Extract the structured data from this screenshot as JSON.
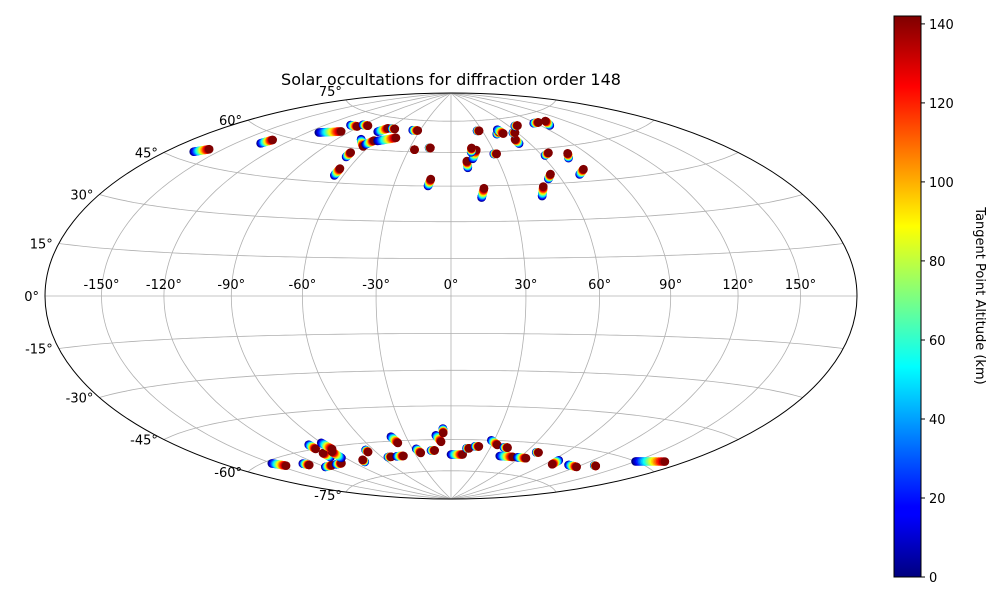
{
  "chart_data": {
    "type": "scatter",
    "projection": "hammer",
    "title": "Solar occultations for diffraction order 148",
    "longitude_ticks": [
      "-150°",
      "-120°",
      "-90°",
      "-60°",
      "-30°",
      "0°",
      "30°",
      "60°",
      "90°",
      "120°",
      "150°"
    ],
    "longitude_values": [
      -150,
      -120,
      -90,
      -60,
      -30,
      0,
      30,
      60,
      90,
      120,
      150
    ],
    "latitude_ticks": [
      "-75°",
      "-60°",
      "-45°",
      "-30°",
      "-15°",
      "0°",
      "15°",
      "30°",
      "45°",
      "60°",
      "75°"
    ],
    "latitude_values": [
      -75,
      -60,
      -45,
      -30,
      -15,
      0,
      15,
      30,
      45,
      60,
      75
    ],
    "grid": true,
    "colorbar": {
      "label": "Tangent Point Altitude (km)",
      "colormap": "jet",
      "range": [
        0,
        142
      ],
      "ticks": [
        "0",
        "20",
        "40",
        "60",
        "80",
        "100",
        "120",
        "140"
      ],
      "tick_values": [
        0,
        20,
        40,
        60,
        80,
        100,
        120,
        140
      ]
    },
    "altitude_range": [
      0,
      142
    ],
    "occultations": [
      {
        "lon": -164,
        "lat": 48,
        "dlon": 6,
        "dlat": 2
      },
      {
        "lon": -135,
        "lat": 56,
        "dlon": 3,
        "dlat": 2
      },
      {
        "lon": -112,
        "lat": 64,
        "dlon": 15,
        "dlat": 2
      },
      {
        "lon": -100,
        "lat": 69,
        "dlon": 8,
        "dlat": 0
      },
      {
        "lon": -90,
        "lat": 70,
        "dlon": 6,
        "dlat": 0
      },
      {
        "lon": -72,
        "lat": 64,
        "dlon": 8,
        "dlat": -3
      },
      {
        "lon": -68,
        "lat": 56,
        "dlon": 0,
        "dlat": 2
      },
      {
        "lon": -65,
        "lat": 48,
        "dlon": 0,
        "dlat": 3
      },
      {
        "lon": -67,
        "lat": 68,
        "dlon": 5,
        "dlat": 2
      },
      {
        "lon": -64,
        "lat": 62,
        "dlon": 3,
        "dlat": 2
      },
      {
        "lon": -58,
        "lat": 64,
        "dlon": 12,
        "dlat": 2
      },
      {
        "lon": -58,
        "lat": 70,
        "dlon": 3,
        "dlat": 0
      },
      {
        "lon": -37,
        "lat": 70,
        "dlon": 5,
        "dlat": 0
      },
      {
        "lon": -26,
        "lat": 61,
        "dlon": 0,
        "dlat": 0
      },
      {
        "lon": -16,
        "lat": 62,
        "dlon": 1,
        "dlat": 0
      },
      {
        "lon": -12,
        "lat": 45,
        "dlon": 1,
        "dlat": 3
      },
      {
        "lon": 10,
        "lat": 53,
        "dlon": 0,
        "dlat": 3
      },
      {
        "lon": 14,
        "lat": 57,
        "dlon": 4,
        "dlat": 4
      },
      {
        "lon": 14,
        "lat": 60,
        "dlon": 1,
        "dlat": 2
      },
      {
        "lon": 15,
        "lat": 40,
        "dlon": 2,
        "dlat": 4
      },
      {
        "lon": 25,
        "lat": 70,
        "dlon": 2,
        "dlat": 0
      },
      {
        "lon": 29,
        "lat": 59,
        "dlon": 2,
        "dlat": 0
      },
      {
        "lon": 41,
        "lat": 68,
        "dlon": 4,
        "dlat": 1
      },
      {
        "lon": 45,
        "lat": 70,
        "dlon": 2,
        "dlat": -2
      },
      {
        "lon": 45,
        "lat": 40,
        "dlon": 3,
        "dlat": 4
      },
      {
        "lon": 52,
        "lat": 63,
        "dlon": 0,
        "dlat": 2
      },
      {
        "lon": 53,
        "lat": 47,
        "dlon": 3,
        "dlat": 2
      },
      {
        "lon": 56,
        "lat": 68,
        "dlon": 2,
        "dlat": 0
      },
      {
        "lon": 62,
        "lat": 57,
        "dlon": 4,
        "dlat": 1
      },
      {
        "lon": 66,
        "lat": 71,
        "dlon": 3,
        "dlat": 0
      },
      {
        "lon": 72,
        "lat": 48,
        "dlon": 5,
        "dlat": 2
      },
      {
        "lon": 75,
        "lat": 55,
        "dlon": 3,
        "dlat": 2
      },
      {
        "lon": 88,
        "lat": 71,
        "dlon": 6,
        "dlat": 0
      },
      {
        "lon": 98,
        "lat": 69,
        "dlon": 5,
        "dlat": 2
      },
      {
        "lon": -150,
        "lat": -61,
        "dlon": 5,
        "dlat": -2
      },
      {
        "lon": -130,
        "lat": -64,
        "dlon": 2,
        "dlat": -1
      },
      {
        "lon": -120,
        "lat": -67,
        "dlon": 8,
        "dlat": 0
      },
      {
        "lon": -107,
        "lat": -67,
        "dlon": 6,
        "dlat": 0
      },
      {
        "lon": -100,
        "lat": -64,
        "dlon": 0,
        "dlat": 2
      },
      {
        "lon": -100,
        "lat": -58,
        "dlon": 0,
        "dlat": -2
      },
      {
        "lon": -93,
        "lat": -65,
        "dlon": 1,
        "dlat": 3
      },
      {
        "lon": -90,
        "lat": -58,
        "dlon": 1,
        "dlat": -3
      },
      {
        "lon": -80,
        "lat": -68,
        "dlon": 1,
        "dlat": 1
      },
      {
        "lon": -66,
        "lat": -63,
        "dlon": 0,
        "dlat": -1
      },
      {
        "lon": -55,
        "lat": -67,
        "dlon": 3,
        "dlat": 0
      },
      {
        "lon": -47,
        "lat": -67,
        "dlon": 6,
        "dlat": 0
      },
      {
        "lon": -40,
        "lat": -58,
        "dlon": 2,
        "dlat": -3
      },
      {
        "lon": -27,
        "lat": -64,
        "dlon": 2,
        "dlat": -2
      },
      {
        "lon": -16,
        "lat": -65,
        "dlon": 3,
        "dlat": 0
      },
      {
        "lon": -10,
        "lat": -58,
        "dlon": 3,
        "dlat": -3
      },
      {
        "lon": -5,
        "lat": -55,
        "dlon": 0,
        "dlat": -2
      },
      {
        "lon": 0,
        "lat": -67,
        "dlon": 10,
        "dlat": 0
      },
      {
        "lon": 12,
        "lat": -64,
        "dlon": 2,
        "dlat": 0
      },
      {
        "lon": 18,
        "lat": -63,
        "dlon": 3,
        "dlat": 0
      },
      {
        "lon": 28,
        "lat": -60,
        "dlon": 6,
        "dlat": -2
      },
      {
        "lon": 40,
        "lat": -63,
        "dlon": 3,
        "dlat": 0
      },
      {
        "lon": 42,
        "lat": -67,
        "dlon": 12,
        "dlat": 0
      },
      {
        "lon": 58,
        "lat": -67,
        "dlon": 8,
        "dlat": 0
      },
      {
        "lon": 68,
        "lat": -64,
        "dlon": 2,
        "dlat": 0
      },
      {
        "lon": 95,
        "lat": -66,
        "dlon": 1,
        "dlat": -2
      },
      {
        "lon": 110,
        "lat": -67,
        "dlon": 10,
        "dlat": 0
      },
      {
        "lon": 130,
        "lat": -65,
        "dlon": 2,
        "dlat": 0
      },
      {
        "lon": 150,
        "lat": -60,
        "dlon": 18,
        "dlat": 3
      }
    ]
  }
}
